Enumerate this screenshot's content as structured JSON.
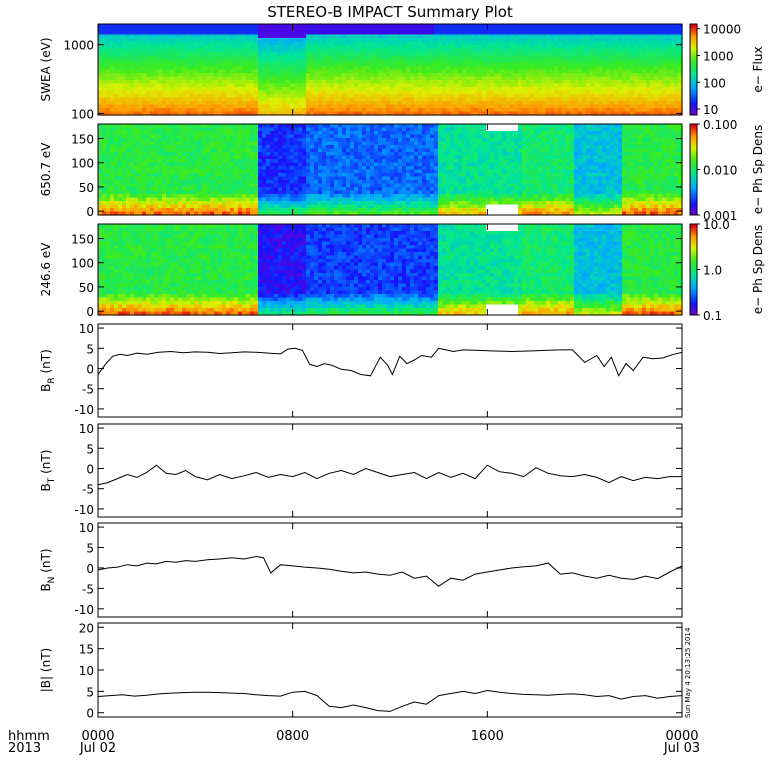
{
  "chart_data": {
    "title": "STEREO-B IMPACT Summary Plot",
    "time_axis": {
      "row_label_1": "hhmm",
      "row_label_2": "2013",
      "ticks": [
        {
          "hour": 0,
          "time_label": "0000",
          "date_label": "Jul 02"
        },
        {
          "hour": 8,
          "time_label": "0800",
          "date_label": ""
        },
        {
          "hour": 16,
          "time_label": "1600",
          "date_label": ""
        },
        {
          "hour": 24,
          "time_label": "0000",
          "date_label": "Jul 03"
        }
      ],
      "range_hours": [
        0,
        24
      ]
    },
    "spectrograms": [
      {
        "type": "heatmap",
        "ylabel": "SWEA (eV)",
        "ylog": true,
        "ylim": [
          95,
          2000
        ],
        "yticks": [
          {
            "v": 100,
            "label": "100"
          },
          {
            "v": 1000,
            "label": "1000"
          }
        ],
        "colorbar_label": "e− Flux",
        "colorbar_ticks": [
          {
            "v": 10,
            "label": "10"
          },
          {
            "v": 100,
            "label": "100"
          },
          {
            "v": 1000,
            "label": "1000"
          },
          {
            "v": 10000,
            "label": "10000"
          }
        ],
        "colorbar_range": [
          6,
          15000
        ],
        "gaps": []
      },
      {
        "type": "heatmap",
        "ylabel": "650.7 eV",
        "ylog": false,
        "ylim": [
          -8,
          180
        ],
        "yticks": [
          {
            "v": 0,
            "label": "0"
          },
          {
            "v": 50,
            "label": "50"
          },
          {
            "v": 100,
            "label": "100"
          },
          {
            "v": 150,
            "label": "150"
          }
        ],
        "colorbar_label": "e− Ph Sp Dens",
        "colorbar_ticks": [
          {
            "v": 0.001,
            "label": "0.001"
          },
          {
            "v": 0.01,
            "label": "0.010"
          },
          {
            "v": 0.1,
            "label": "0.100"
          }
        ],
        "colorbar_range": [
          0.001,
          0.1
        ],
        "gaps": [
          [
            16.0,
            17.2
          ]
        ]
      },
      {
        "type": "heatmap",
        "ylabel": "246.6 eV",
        "ylog": false,
        "ylim": [
          -8,
          180
        ],
        "yticks": [
          {
            "v": 0,
            "label": "0"
          },
          {
            "v": 50,
            "label": "50"
          },
          {
            "v": 100,
            "label": "100"
          },
          {
            "v": 150,
            "label": "150"
          }
        ],
        "colorbar_label": "e− Ph Sp Dens",
        "colorbar_ticks": [
          {
            "v": 0.1,
            "label": "0.1"
          },
          {
            "v": 1,
            "label": "1.0"
          },
          {
            "v": 10,
            "label": "10.0"
          }
        ],
        "colorbar_range": [
          0.1,
          10
        ],
        "gaps": [
          [
            16.0,
            17.2
          ]
        ]
      }
    ],
    "line_panels": [
      {
        "type": "line",
        "ylabel": "B",
        "ysub": "R",
        "yunit": " (nT)",
        "ylim": [
          -12,
          11
        ],
        "yticks": [
          -10,
          -5,
          0,
          5,
          10
        ],
        "series": [
          {
            "x": [
              0,
              0.3,
              0.6,
              0.9,
              1.2,
              1.6,
              2,
              2.5,
              3,
              3.5,
              4,
              4.5,
              5,
              5.5,
              6,
              6.5,
              7,
              7.5,
              7.8,
              8.1,
              8.4,
              8.7,
              9,
              9.3,
              9.6,
              10,
              10.4,
              10.8,
              11.2,
              11.6,
              11.9,
              12.1,
              12.4,
              12.7,
              13,
              13.3,
              13.7,
              14,
              14.3,
              14.6,
              15,
              15.5,
              16,
              16.5,
              17,
              17.5,
              18,
              18.5,
              19,
              19.5,
              20,
              20.5,
              20.8,
              21.1,
              21.4,
              21.7,
              22,
              22.4,
              22.8,
              23.2,
              23.6,
              24
            ],
            "values": [
              -1.5,
              1,
              3,
              3.5,
              3.2,
              3.8,
              3.5,
              4,
              4.2,
              3.9,
              4.1,
              4,
              3.7,
              3.9,
              4.1,
              4,
              3.8,
              3.6,
              4.8,
              5,
              4.5,
              1,
              0.5,
              1.2,
              0.8,
              -0.2,
              -0.5,
              -1.5,
              -1.8,
              2.8,
              0.8,
              -1.5,
              3,
              1.2,
              2.1,
              3.2,
              2.8,
              5,
              4.6,
              4.2,
              4.6,
              4.5,
              4.4,
              4.3,
              4.2,
              4.3,
              4.4,
              4.5,
              4.6,
              4.6,
              1.5,
              3.2,
              0.5,
              2.8,
              -1.8,
              1.2,
              -0.5,
              2.8,
              2.4,
              2.6,
              3.4,
              4
            ]
          }
        ]
      },
      {
        "type": "line",
        "ylabel": "B",
        "ysub": "T",
        "yunit": " (nT)",
        "ylim": [
          -12,
          11
        ],
        "yticks": [
          -10,
          -5,
          0,
          5,
          10
        ],
        "series": [
          {
            "x": [
              0,
              0.4,
              0.8,
              1.2,
              1.6,
              2,
              2.4,
              2.8,
              3.2,
              3.6,
              4,
              4.5,
              5,
              5.5,
              6,
              6.5,
              7,
              7.5,
              8,
              8.5,
              9,
              9.5,
              10,
              10.5,
              11,
              11.5,
              12,
              12.5,
              13,
              13.5,
              14,
              14.5,
              15,
              15.5,
              16,
              16.5,
              17,
              17.5,
              18,
              18.5,
              19,
              19.5,
              20,
              20.5,
              21,
              21.5,
              22,
              22.5,
              23,
              23.5,
              24
            ],
            "values": [
              -4,
              -3.5,
              -2.5,
              -1.5,
              -2.2,
              -1,
              0.8,
              -1.2,
              -1.5,
              -0.5,
              -2,
              -2.8,
              -1.5,
              -2.5,
              -1.8,
              -1,
              -2.2,
              -1.5,
              -2,
              -1,
              -2.5,
              -1.2,
              -0.5,
              -1.5,
              0,
              -1,
              -2,
              -1.5,
              -1,
              -2.5,
              -1,
              -2.2,
              -1.2,
              -2.5,
              0.8,
              -0.8,
              -1.2,
              -2,
              0.2,
              -1.2,
              -1.8,
              -2,
              -1.5,
              -2.2,
              -3.5,
              -2,
              -3,
              -2.2,
              -2.5,
              -2,
              -2
            ]
          }
        ]
      },
      {
        "type": "line",
        "ylabel": "B",
        "ysub": "N",
        "yunit": " (nT)",
        "ylim": [
          -12,
          11
        ],
        "yticks": [
          -10,
          -5,
          0,
          5,
          10
        ],
        "series": [
          {
            "x": [
              0,
              0.4,
              0.8,
              1.2,
              1.6,
              2,
              2.4,
              2.8,
              3.2,
              3.6,
              4,
              4.5,
              5,
              5.5,
              6,
              6.5,
              6.8,
              7.1,
              7.5,
              8,
              8.5,
              9,
              9.5,
              10,
              10.5,
              11,
              11.5,
              12,
              12.5,
              13,
              13.5,
              14,
              14.5,
              15,
              15.5,
              16,
              16.5,
              17,
              17.5,
              18,
              18.5,
              19,
              19.5,
              20,
              20.5,
              21,
              21.5,
              22,
              22.5,
              23,
              23.5,
              24
            ],
            "values": [
              -0.5,
              0,
              0.2,
              0.8,
              0.5,
              1.2,
              1,
              1.6,
              1.4,
              1.8,
              1.6,
              2,
              2.2,
              2.5,
              2.2,
              2.8,
              2.5,
              -1.2,
              0.8,
              0.5,
              0.2,
              0,
              -0.3,
              -0.8,
              -1.2,
              -1,
              -1.5,
              -1.8,
              -1,
              -2.5,
              -2,
              -4.5,
              -2.5,
              -3,
              -1.5,
              -1,
              -0.5,
              0,
              0.3,
              0.5,
              1.2,
              -1.5,
              -1.2,
              -2,
              -2.5,
              -1.8,
              -2.5,
              -2.8,
              -2,
              -2.6,
              -1,
              0.5
            ]
          }
        ]
      },
      {
        "type": "line",
        "ylabel": "|B|",
        "ysub": "",
        "yunit": " (nT)",
        "ylim": [
          -1,
          21
        ],
        "yticks": [
          0,
          5,
          10,
          15,
          20
        ],
        "series": [
          {
            "x": [
              0,
              0.5,
              1,
              1.5,
              2,
              2.5,
              3,
              3.5,
              4,
              4.5,
              5,
              5.5,
              6,
              6.5,
              7,
              7.5,
              8,
              8.5,
              9,
              9.5,
              10,
              10.5,
              11,
              11.5,
              12,
              12.5,
              13,
              13.5,
              14,
              14.5,
              15,
              15.5,
              16,
              16.5,
              17,
              17.5,
              18,
              18.5,
              19,
              19.5,
              20,
              20.5,
              21,
              21.5,
              22,
              22.5,
              23,
              23.5,
              24
            ],
            "values": [
              3.8,
              4,
              4.2,
              3.9,
              4.1,
              4.4,
              4.6,
              4.7,
              4.8,
              4.8,
              4.7,
              4.6,
              4.5,
              4.2,
              4,
              3.9,
              4.8,
              5,
              4,
              1.5,
              1.2,
              1.8,
              1.2,
              0.5,
              0.3,
              1.5,
              2.5,
              2,
              4,
              4.5,
              5,
              4.5,
              5.2,
              4.8,
              4.5,
              4.3,
              4.2,
              4.1,
              4.3,
              4.4,
              4.2,
              3.8,
              4,
              3.2,
              3.8,
              4,
              3.4,
              3.8,
              4
            ]
          }
        ]
      }
    ],
    "side_annotation": "Sun May  4 20:13:25 2014"
  }
}
